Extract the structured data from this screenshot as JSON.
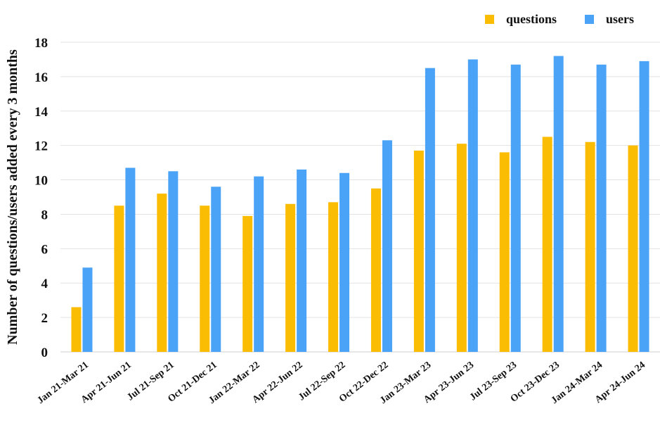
{
  "chart_data": {
    "type": "bar",
    "title": "",
    "xlabel": "",
    "ylabel": "Number of questions/users added every 3 months",
    "ylim": [
      0,
      18
    ],
    "yticks": [
      0,
      2,
      4,
      6,
      8,
      10,
      12,
      14,
      16,
      18
    ],
    "grid": true,
    "legend_position": "top-right",
    "categories": [
      "Jan 21-Mar 21",
      "Apr 21-Jun 21",
      "Jul 21-Sep 21",
      "Oct 21-Dec 21",
      "Jan 22-Mar 22",
      "Apr 22-Jun 22",
      "Jul 22-Sep 22",
      "Oct 22-Dec 22",
      "Jan 23-Mar 23",
      "Apr 23-Jun 23",
      "Jul 23-Sep 23",
      "Oct 23-Dec 23",
      "Jan 24-Mar 24",
      "Apr 24-Jun 24"
    ],
    "series": [
      {
        "name": "questions",
        "color": "#FBBC04",
        "values": [
          2.6,
          8.5,
          9.2,
          8.5,
          7.9,
          8.6,
          8.7,
          9.5,
          11.7,
          12.1,
          11.6,
          12.5,
          12.2,
          12.0
        ]
      },
      {
        "name": "users",
        "color": "#4AA3F7",
        "values": [
          4.9,
          10.7,
          10.5,
          9.6,
          10.2,
          10.6,
          10.4,
          12.3,
          16.5,
          17.0,
          16.7,
          17.2,
          16.7,
          16.9
        ]
      }
    ]
  }
}
